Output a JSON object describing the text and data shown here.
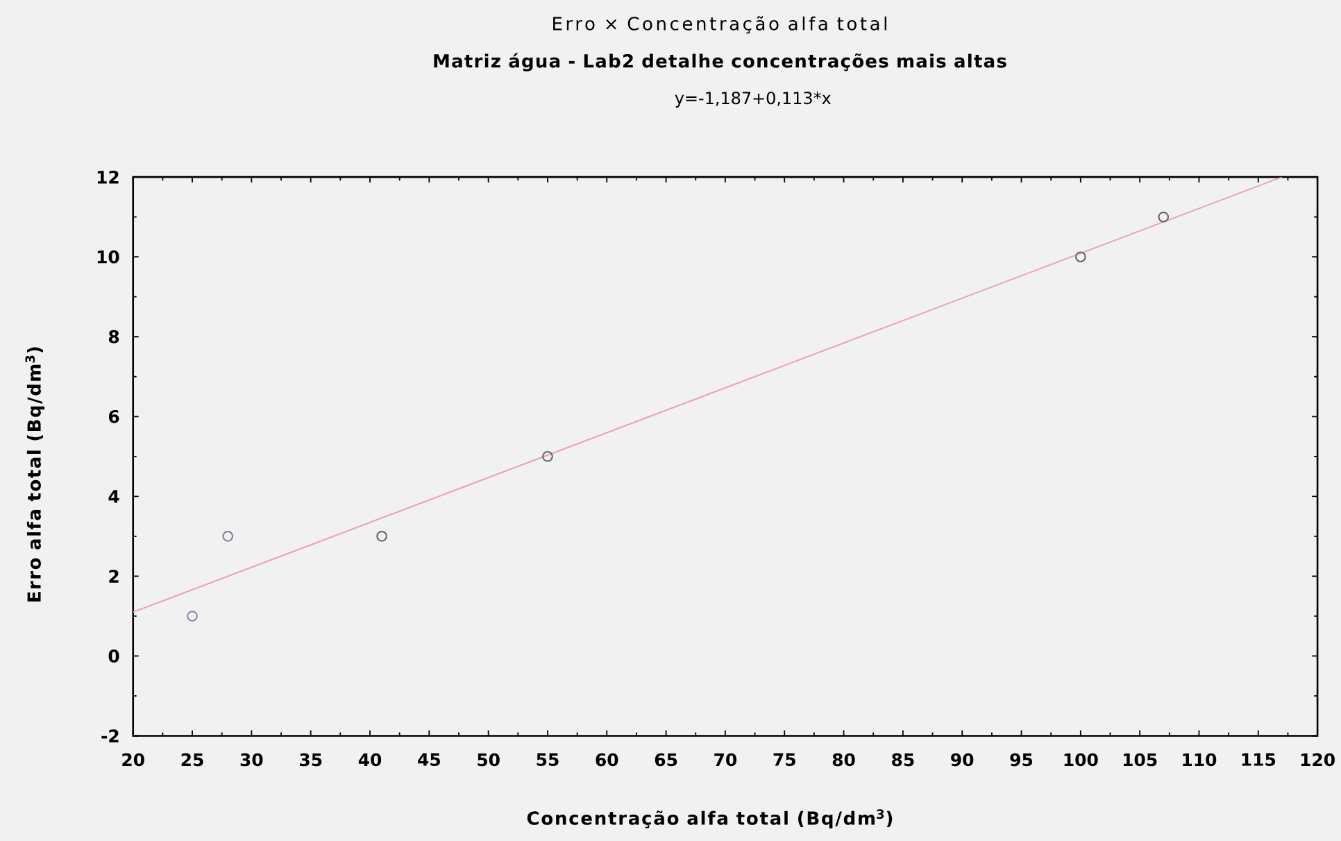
{
  "chart_data": {
    "type": "scatter",
    "title": "Erro × Concentração alfa total",
    "subtitle": "Matriz água - Lab2 detalhe concentrações mais altas",
    "annotations": [
      "y=-1,187+0,113*x"
    ],
    "xlabel": "Concentração alfa total (Bq/dm$^{3}$)",
    "ylabel": "Erro alfa total (Bq/dm$^{3}$)",
    "xlim": [
      20,
      120
    ],
    "ylim": [
      -2,
      12
    ],
    "xticks": [
      20,
      25,
      30,
      35,
      40,
      45,
      50,
      55,
      60,
      65,
      70,
      75,
      80,
      85,
      90,
      95,
      100,
      105,
      110,
      115,
      120
    ],
    "yticks": [
      -2,
      0,
      2,
      4,
      6,
      8,
      10,
      12
    ],
    "marker": "circle",
    "series": [
      {
        "type": "line",
        "x": [
          20,
          117
        ],
        "values": [
          1.1,
          12
        ],
        "color": "#e8a4ac",
        "marker": "none"
      },
      {
        "x": [
          25,
          28,
          41,
          55,
          100,
          107
        ],
        "values": [
          1,
          3,
          3,
          5,
          10,
          11
        ],
        "colors": [
          "#8080c8",
          "#807890",
          "#606060",
          "#606060",
          "#606060",
          "#606060"
        ]
      }
    ]
  }
}
